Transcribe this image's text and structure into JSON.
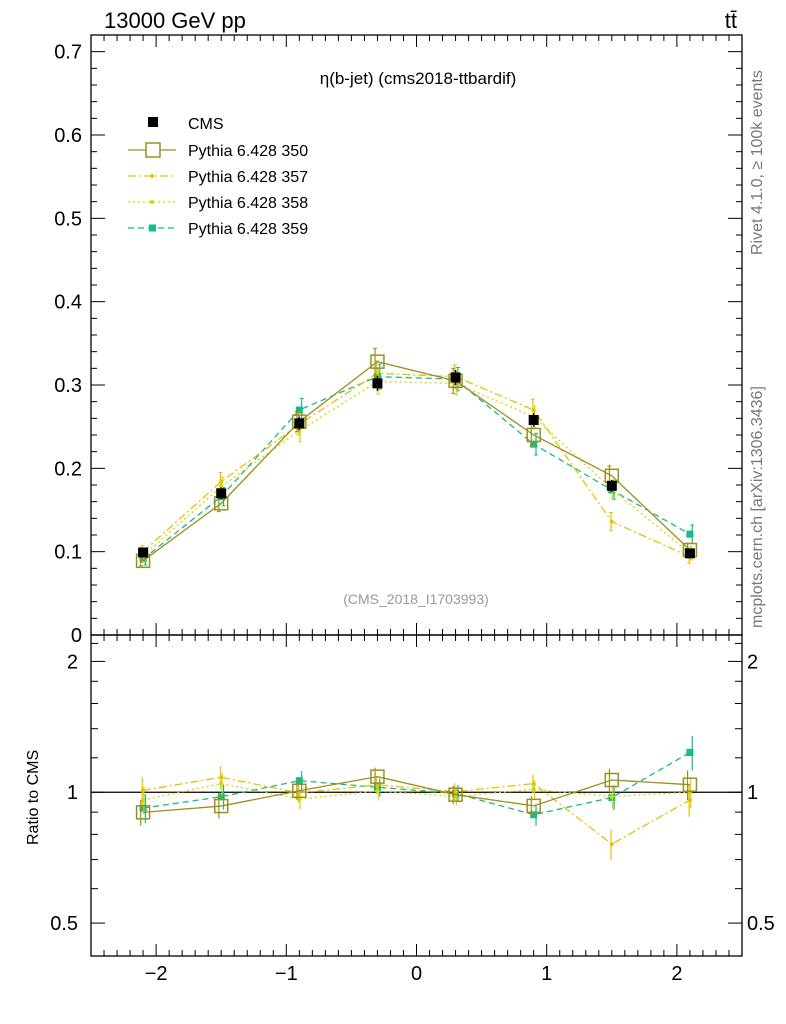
{
  "header": {
    "energy_label": "13000 GeV pp",
    "process_label": "tt̄",
    "plot_title": "η(b-jet) (cms2018-ttbardif)",
    "watermark": "(CMS_2018_I1703993)",
    "side_rivet": "Rivet 4.1.0, ≥ 100k events",
    "side_source": "mcplots.cern.ch [arXiv:1306.3436]"
  },
  "chart_data": {
    "type": "scatter",
    "x": [
      -2.1,
      -1.5,
      -0.9,
      -0.3,
      0.3,
      0.9,
      1.5,
      2.1
    ],
    "xlim": [
      -2.5,
      2.5
    ],
    "main_ylim": [
      0,
      0.72
    ],
    "main_yticks": [
      "0",
      "0.1",
      "0.2",
      "0.3",
      "0.4",
      "0.5",
      "0.6",
      "0.7"
    ],
    "main_ytick_values": [
      0,
      0.1,
      0.2,
      0.3,
      0.4,
      0.5,
      0.6,
      0.7
    ],
    "xtick_labels": [
      "−2",
      "−1",
      "0",
      "1",
      "2"
    ],
    "xtick_values": [
      -2,
      -1,
      0,
      1,
      2
    ],
    "ratio_ylabel": "Ratio to CMS",
    "ratio_ylim": [
      0.42,
      2.3
    ],
    "ratio_yticks": [
      "0.5",
      "1",
      "2"
    ],
    "ratio_ytick_values": [
      0.5,
      1,
      2
    ],
    "data": {
      "name": "CMS",
      "values": [
        0.099,
        0.17,
        0.254,
        0.302,
        0.309,
        0.258,
        0.179,
        0.098
      ],
      "errors": [
        0.005,
        0.007,
        0.008,
        0.009,
        0.009,
        0.008,
        0.007,
        0.005
      ]
    },
    "series": [
      {
        "name": "Pythia 6.428 350",
        "color": "#9b8f1f",
        "style": "solid",
        "marker": "open-square",
        "values": [
          0.089,
          0.158,
          0.256,
          0.328,
          0.305,
          0.24,
          0.191,
          0.102
        ],
        "errors": [
          0.006,
          0.01,
          0.012,
          0.016,
          0.015,
          0.013,
          0.012,
          0.008
        ]
      },
      {
        "name": "Pythia 6.428 357",
        "color": "#e6c200",
        "style": "dashdot",
        "marker": "dot",
        "values": [
          0.1,
          0.184,
          0.253,
          0.314,
          0.31,
          0.27,
          0.136,
          0.094
        ],
        "errors": [
          0.007,
          0.011,
          0.013,
          0.015,
          0.014,
          0.013,
          0.011,
          0.008
        ]
      },
      {
        "name": "Pythia 6.428 358",
        "color": "#d6d600",
        "style": "dotted",
        "marker": "dot",
        "values": [
          0.095,
          0.178,
          0.245,
          0.304,
          0.302,
          0.262,
          0.175,
          0.098
        ],
        "errors": [
          0.007,
          0.011,
          0.013,
          0.015,
          0.014,
          0.013,
          0.011,
          0.008
        ]
      },
      {
        "name": "Pythia 6.428 359",
        "color": "#19b988",
        "style": "dashed",
        "marker": "filled-square",
        "values": [
          0.091,
          0.166,
          0.27,
          0.31,
          0.307,
          0.229,
          0.174,
          0.121
        ],
        "errors": [
          0.007,
          0.011,
          0.014,
          0.015,
          0.014,
          0.013,
          0.011,
          0.011
        ]
      }
    ],
    "legend_position": "top-left"
  }
}
